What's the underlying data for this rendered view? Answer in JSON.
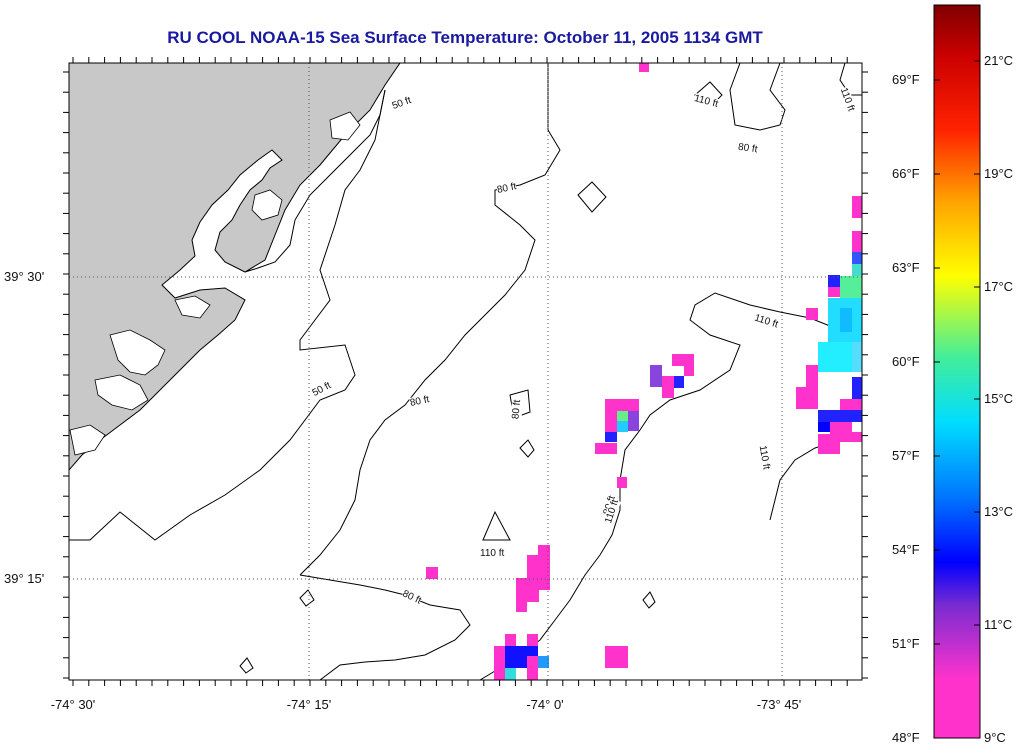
{
  "title": "RU COOL  NOAA-15  Sea Surface Temperature:  October 11, 2005 1134 GMT",
  "axes": {
    "longitude_labels": [
      "-74° 30'",
      "-74° 15'",
      "-74° 0'",
      "-73° 45'"
    ],
    "latitude_labels": [
      "39° 30'",
      "39° 15'"
    ]
  },
  "contour_labels": [
    "50 ft",
    "50 ft",
    "80 ft",
    "80 ft",
    "80 ft",
    "80 ft",
    "80 ft",
    "80 ft",
    "110 ft",
    "110 ft",
    "110 ft",
    "110 ft",
    "110 ft",
    "110 ft"
  ],
  "colorbar": {
    "fahrenheit_labels": [
      "69°F",
      "66°F",
      "63°F",
      "60°F",
      "57°F",
      "54°F",
      "51°F",
      "48°F"
    ],
    "celsius_labels": [
      "21°C",
      "19°C",
      "17°C",
      "15°C",
      "13°C",
      "11°C",
      "9°C"
    ],
    "colors": [
      "#ff33cc",
      "#8844dd",
      "#0000ff",
      "#0088ff",
      "#00ddff",
      "#66ee88",
      "#ffff00",
      "#ff9900",
      "#ff0000",
      "#800000"
    ]
  },
  "legend_colors": {
    "land": "#c8c8c8",
    "contour": "#000000",
    "grid": "#555555",
    "title": "#1a1aa0"
  }
}
